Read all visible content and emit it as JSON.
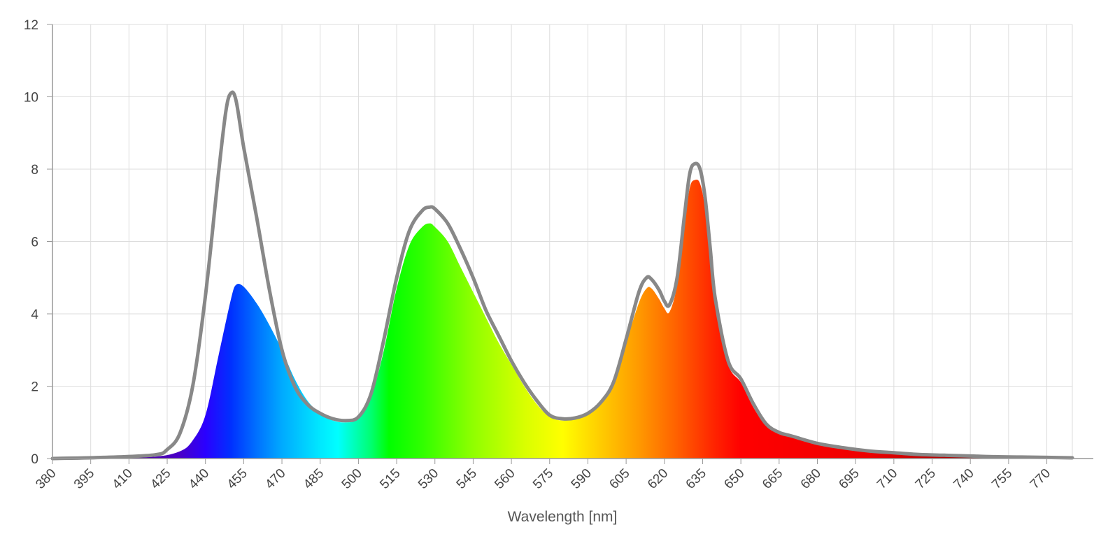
{
  "chart_data": {
    "type": "area",
    "title": "",
    "xlabel": "Wavelength [nm]",
    "ylabel": "",
    "xlim": [
      380,
      780
    ],
    "ylim": [
      0,
      12
    ],
    "grid": true,
    "x_ticks": [
      380,
      395,
      410,
      425,
      440,
      455,
      470,
      485,
      500,
      515,
      530,
      545,
      560,
      575,
      590,
      605,
      620,
      635,
      650,
      665,
      680,
      695,
      710,
      725,
      740,
      755,
      770
    ],
    "y_ticks": [
      0,
      2,
      4,
      6,
      8,
      10,
      12
    ],
    "series": [
      {
        "role": "spectrum-fill",
        "x": [
          380,
          400,
          420,
          430,
          435,
          440,
          445,
          450,
          452,
          455,
          460,
          465,
          470,
          475,
          480,
          485,
          490,
          495,
          500,
          505,
          510,
          515,
          520,
          525,
          528,
          530,
          535,
          540,
          545,
          550,
          555,
          560,
          565,
          570,
          575,
          580,
          585,
          590,
          595,
          600,
          605,
          610,
          613,
          615,
          618,
          620,
          622,
          625,
          628,
          630,
          632,
          634,
          636,
          638,
          640,
          645,
          650,
          655,
          660,
          665,
          670,
          680,
          690,
          700,
          710,
          720,
          730,
          740,
          750,
          760,
          770,
          780
        ],
        "y": [
          0.0,
          0.02,
          0.05,
          0.2,
          0.5,
          1.2,
          2.8,
          4.4,
          4.8,
          4.75,
          4.3,
          3.7,
          3.0,
          2.2,
          1.6,
          1.25,
          1.05,
          1.0,
          1.1,
          1.7,
          3.0,
          4.7,
          5.9,
          6.4,
          6.5,
          6.4,
          6.0,
          5.3,
          4.6,
          3.9,
          3.2,
          2.6,
          2.0,
          1.5,
          1.15,
          1.05,
          1.1,
          1.2,
          1.5,
          2.0,
          3.2,
          4.3,
          4.7,
          4.7,
          4.4,
          4.15,
          4.05,
          4.8,
          6.5,
          7.5,
          7.7,
          7.6,
          6.9,
          5.5,
          4.2,
          2.6,
          2.1,
          1.4,
          0.9,
          0.7,
          0.6,
          0.4,
          0.28,
          0.2,
          0.15,
          0.1,
          0.08,
          0.06,
          0.04,
          0.03,
          0.02,
          0.02
        ]
      },
      {
        "role": "envelope-line",
        "color": "#888888",
        "x": [
          380,
          400,
          420,
          425,
          430,
          435,
          440,
          445,
          448,
          450,
          452,
          455,
          460,
          465,
          470,
          475,
          480,
          485,
          490,
          495,
          500,
          505,
          510,
          515,
          520,
          525,
          528,
          530,
          535,
          540,
          545,
          550,
          555,
          560,
          565,
          570,
          575,
          580,
          585,
          590,
          595,
          600,
          605,
          610,
          613,
          615,
          618,
          620,
          622,
          625,
          628,
          630,
          632,
          634,
          636,
          638,
          640,
          645,
          650,
          655,
          660,
          665,
          670,
          680,
          690,
          700,
          710,
          720,
          730,
          740,
          750,
          760,
          770,
          780
        ],
        "y": [
          0.0,
          0.03,
          0.1,
          0.25,
          0.7,
          2.0,
          4.5,
          7.8,
          9.6,
          10.1,
          9.9,
          8.6,
          6.7,
          4.7,
          3.0,
          2.0,
          1.5,
          1.25,
          1.1,
          1.05,
          1.15,
          1.8,
          3.3,
          5.0,
          6.3,
          6.85,
          6.95,
          6.9,
          6.5,
          5.8,
          5.0,
          4.1,
          3.4,
          2.7,
          2.1,
          1.6,
          1.2,
          1.1,
          1.12,
          1.25,
          1.55,
          2.1,
          3.3,
          4.6,
          5.0,
          4.95,
          4.65,
          4.35,
          4.25,
          5.0,
          6.8,
          7.9,
          8.15,
          8.0,
          7.2,
          5.8,
          4.4,
          2.7,
          2.2,
          1.5,
          0.95,
          0.72,
          0.62,
          0.42,
          0.3,
          0.21,
          0.16,
          0.11,
          0.09,
          0.07,
          0.05,
          0.04,
          0.03,
          0.02
        ]
      }
    ]
  }
}
